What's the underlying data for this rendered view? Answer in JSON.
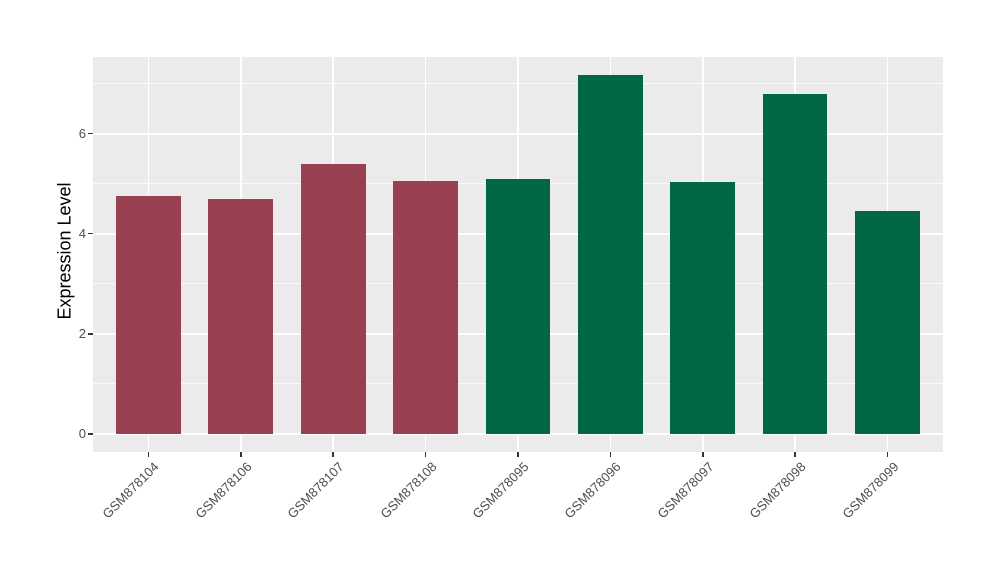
{
  "chart_data": {
    "type": "bar",
    "title": "",
    "xlabel": "",
    "ylabel": "Expression Level",
    "categories": [
      "GSM878104",
      "GSM878106",
      "GSM878107",
      "GSM878108",
      "GSM878095",
      "GSM878096",
      "GSM878097",
      "GSM878098",
      "GSM878099"
    ],
    "values": [
      4.75,
      4.69,
      5.4,
      5.06,
      5.09,
      7.17,
      5.04,
      6.78,
      4.46
    ],
    "bar_colors": [
      "#9A4151",
      "#9A4151",
      "#9A4151",
      "#9A4151",
      "#016747",
      "#016747",
      "#016747",
      "#016747",
      "#016747"
    ],
    "group_colors": {
      "maroon_group": "#9A4151",
      "green_group": "#016747"
    },
    "yticks": [
      0,
      2,
      4,
      6
    ],
    "yticks_minor": [
      1,
      3,
      5,
      7
    ],
    "ylim": [
      -0.36,
      7.53
    ],
    "grid": "on",
    "legend": "none",
    "panel_bg": "#EBEBEB",
    "grid_color": "#FFFFFF",
    "tick_color": "#333333",
    "axis_text_color": "#4D4D4D",
    "axis_title_color": "#000000"
  }
}
